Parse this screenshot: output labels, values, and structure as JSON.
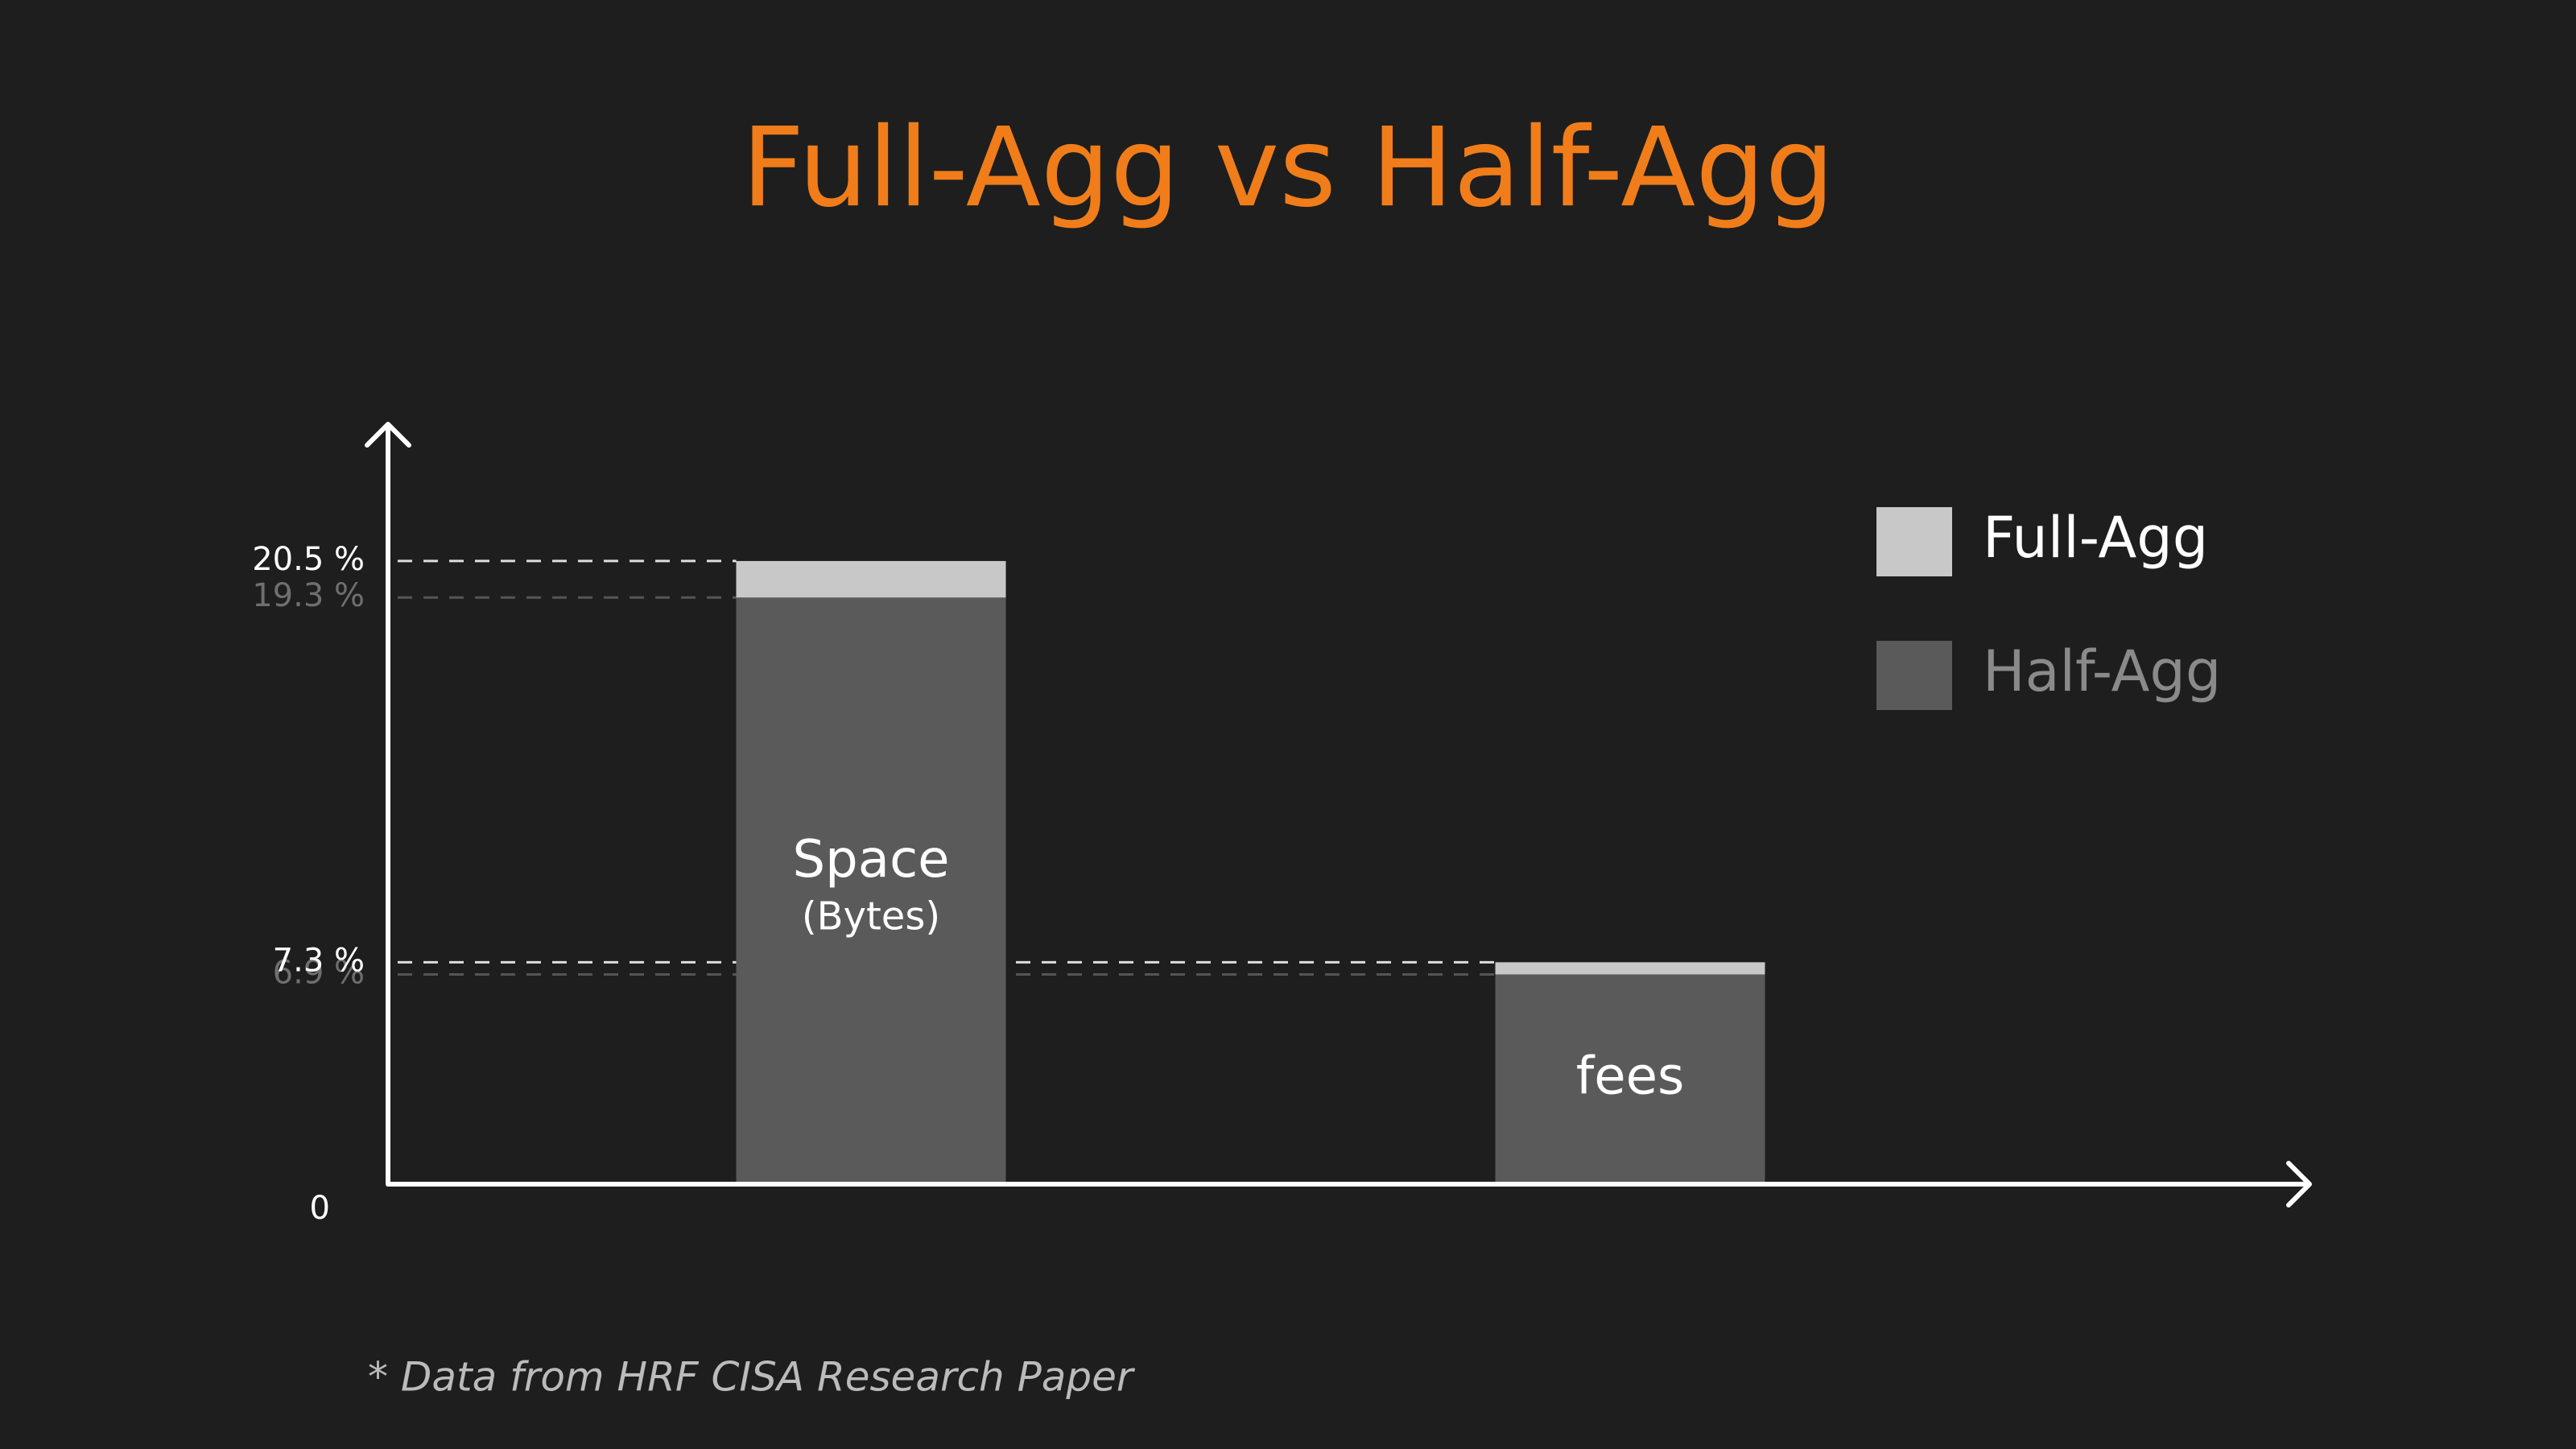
{
  "chart_data": {
    "type": "bar",
    "title": "Full-Agg vs Half-Agg",
    "categories": [
      [
        "Space",
        "(Bytes)"
      ],
      [
        "fees"
      ]
    ],
    "series": [
      {
        "name": "Full-Agg",
        "color": "#c8c8c8",
        "values": [
          20.5,
          7.3
        ]
      },
      {
        "name": "Half-Agg",
        "color": "#5a5a5a",
        "values": [
          19.3,
          6.9
        ]
      }
    ],
    "ylim": [
      0,
      25
    ],
    "yticks": [
      0,
      {
        "value": 6.9,
        "label": "6.9 %"
      },
      {
        "value": 7.3,
        "label": "7.3 %"
      },
      {
        "value": 19.3,
        "label": "19.3 %"
      },
      {
        "value": 20.5,
        "label": "20.5 %"
      }
    ],
    "grid": true,
    "legend": "upper right",
    "note": "* Data from HRF CISA Research Paper"
  }
}
